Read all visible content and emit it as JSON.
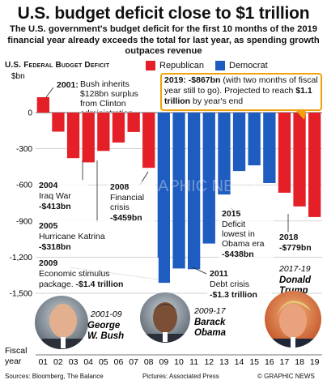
{
  "header": {
    "title": "U.S. budget deficit close to $1 trillion",
    "subtitle": "The U.S. government's budget deficit for the first 10 months of the 2019 financial year already exceeds the total for last year, as spending growth outpaces revenue"
  },
  "chart_label": "U.S. Federal Budget Deficit",
  "legend": {
    "republican": "Republican",
    "democrat": "Democrat"
  },
  "colors": {
    "republican": "#e41f27",
    "democrat": "#1f5cbf",
    "callout_border": "#f2a20b",
    "callout_text_highlight": "#e41f27",
    "grid": "#bfbfbf"
  },
  "chart_data": {
    "type": "bar",
    "title": "U.S. budget deficit close to $1 trillion",
    "ylabel": "$bn",
    "xlabel": "Fiscal year",
    "ylim": [
      -1600,
      200
    ],
    "yticks": [
      0,
      -300,
      -600,
      -900,
      -1200,
      -1500
    ],
    "ytick_labels": [
      "0",
      "-300",
      "-600",
      "-900",
      "-1,200",
      "-1,500"
    ],
    "categories": [
      "01",
      "02",
      "03",
      "04",
      "05",
      "06",
      "07",
      "08",
      "09",
      "10",
      "11",
      "12",
      "13",
      "14",
      "15",
      "16",
      "17",
      "18",
      "19"
    ],
    "values": [
      128,
      -158,
      -378,
      -413,
      -318,
      -248,
      -161,
      -459,
      -1413,
      -1294,
      -1300,
      -1087,
      -680,
      -485,
      -438,
      -585,
      -665,
      -779,
      -867
    ],
    "party": [
      "R",
      "R",
      "R",
      "R",
      "R",
      "R",
      "R",
      "R",
      "D",
      "D",
      "D",
      "D",
      "D",
      "D",
      "D",
      "D",
      "R",
      "R",
      "R"
    ],
    "series": [
      {
        "name": "Republican"
      },
      {
        "name": "Democrat"
      }
    ]
  },
  "annotations": {
    "a2001": {
      "year": "2001:",
      "text": "Bush inherits $128bn surplus from Clinton administration"
    },
    "a2004": {
      "year": "2004",
      "line1": "Iraq War",
      "value": "-$413bn"
    },
    "a2005": {
      "year": "2005",
      "line1": "Hurricane Katrina",
      "value": "-$318bn"
    },
    "a2008": {
      "year": "2008",
      "line1": "Financial",
      "line2": "crisis",
      "value": "-$459bn"
    },
    "a2009": {
      "year": "2009",
      "line1": "Economic stimulus",
      "line2a": "package. ",
      "value": "-$1.4 trillion"
    },
    "a2011": {
      "year": "2011",
      "line1": "Debt crisis",
      "value": "-$1.3 trillion"
    },
    "a2015": {
      "year": "2015",
      "line1": "Deficit",
      "line2": "lowest in",
      "line3": "Obama era",
      "value": "-$438bn"
    },
    "a2018": {
      "year": "2018",
      "value": "-$779bn"
    },
    "callout": {
      "bold1": "2019: -$867bn",
      "text1": " (with two months of fiscal year still to go). Projected to reach ",
      "bold2": "$1.1 trillion",
      "text2": " by year's end"
    }
  },
  "presidents": [
    {
      "years": "2001-09",
      "first": "George",
      "last": "W. Bush",
      "icon": "bush-portrait"
    },
    {
      "years": "2009-17",
      "first": "Barack",
      "last": "Obama",
      "icon": "obama-portrait"
    },
    {
      "years": "2017-19",
      "first": "Donald",
      "last": "Trump",
      "icon": "trump-portrait"
    }
  ],
  "watermark": "GRAPHIC NEWS",
  "footer": {
    "sources": "Sources: Bloomberg, The Balance",
    "pictures": "Pictures: Associated Press",
    "copyright": "© GRAPHIC NEWS"
  }
}
